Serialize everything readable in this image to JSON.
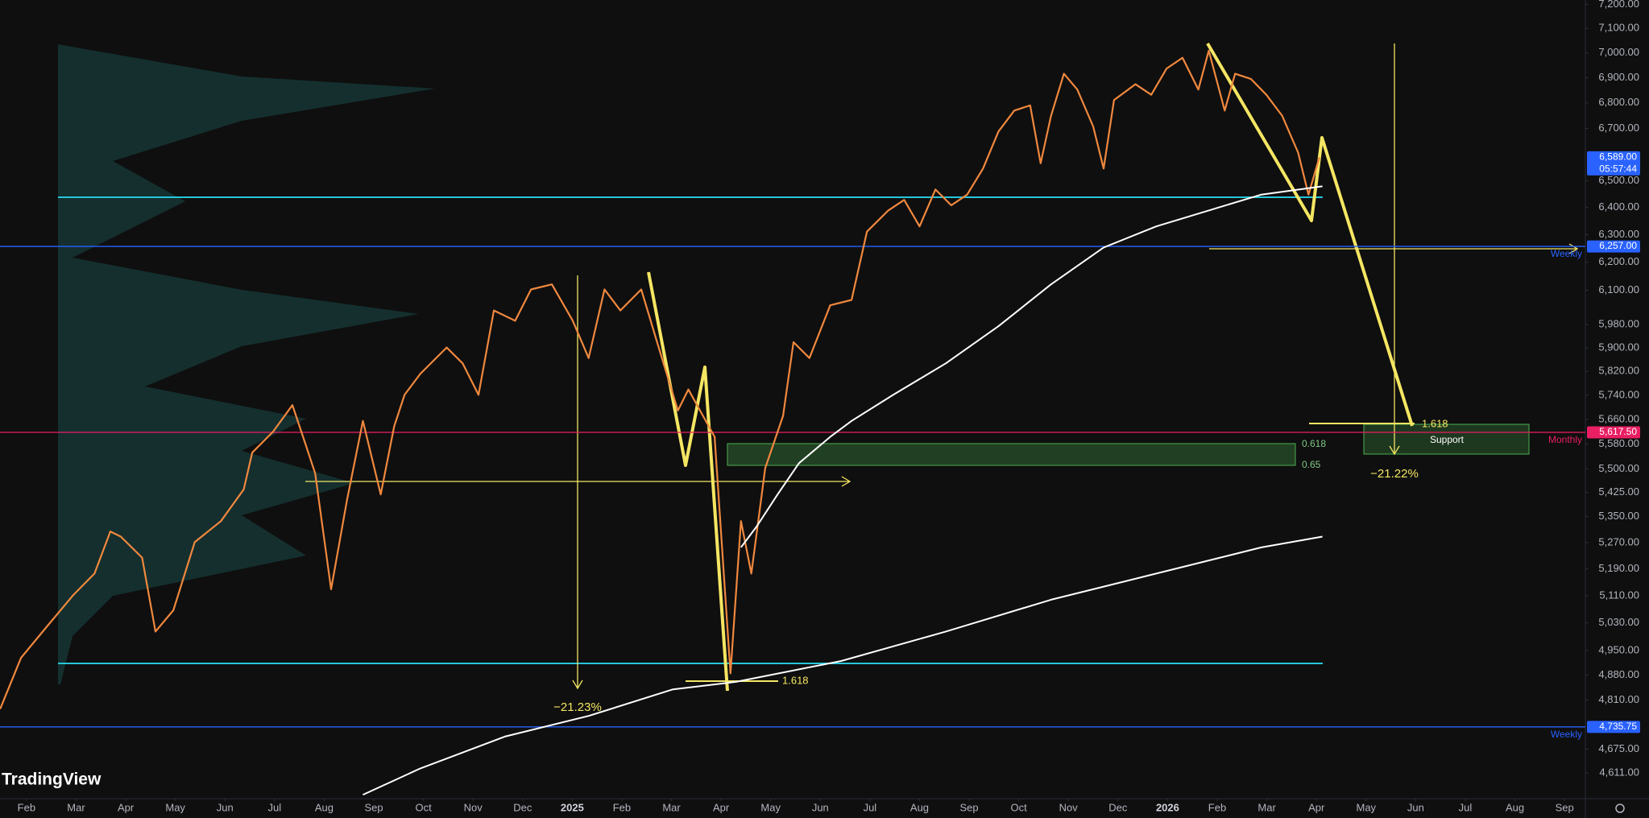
{
  "chart_data": {
    "type": "line",
    "watermark": "TradingView",
    "log_scale": true,
    "grid": false,
    "xlim": [
      0.466,
      32.42
    ],
    "ylim": [
      4549,
      7218
    ],
    "xticks": [
      {
        "value": 1,
        "label": "Feb"
      },
      {
        "value": 2,
        "label": "Mar"
      },
      {
        "value": 3,
        "label": "Apr"
      },
      {
        "value": 4,
        "label": "May"
      },
      {
        "value": 5,
        "label": "Jun"
      },
      {
        "value": 6,
        "label": "Jul"
      },
      {
        "value": 7,
        "label": "Aug"
      },
      {
        "value": 8,
        "label": "Sep"
      },
      {
        "value": 9,
        "label": "Oct"
      },
      {
        "value": 10,
        "label": "Nov"
      },
      {
        "value": 11,
        "label": "Dec"
      },
      {
        "value": 12,
        "label": "2025"
      },
      {
        "value": 13,
        "label": "Feb"
      },
      {
        "value": 14,
        "label": "Mar"
      },
      {
        "value": 15,
        "label": "Apr"
      },
      {
        "value": 16,
        "label": "May"
      },
      {
        "value": 17,
        "label": "Jun"
      },
      {
        "value": 18,
        "label": "Jul"
      },
      {
        "value": 19,
        "label": "Aug"
      },
      {
        "value": 20,
        "label": "Sep"
      },
      {
        "value": 21,
        "label": "Oct"
      },
      {
        "value": 22,
        "label": "Nov"
      },
      {
        "value": 23,
        "label": "Dec"
      },
      {
        "value": 24,
        "label": "2026"
      },
      {
        "value": 25,
        "label": "Feb"
      },
      {
        "value": 26,
        "label": "Mar"
      },
      {
        "value": 27,
        "label": "Apr"
      },
      {
        "value": 28,
        "label": "May"
      },
      {
        "value": 29,
        "label": "Jun"
      },
      {
        "value": 30,
        "label": "Jul"
      },
      {
        "value": 31,
        "label": "Aug"
      },
      {
        "value": 32,
        "label": "Sep"
      }
    ],
    "yticks": [
      {
        "value": 7200,
        "label": "7,200.00"
      },
      {
        "value": 7100,
        "label": "7,100.00"
      },
      {
        "value": 7000,
        "label": "7,000.00"
      },
      {
        "value": 6900,
        "label": "6,900.00"
      },
      {
        "value": 6800,
        "label": "6,800.00"
      },
      {
        "value": 6700,
        "label": "6,700.00"
      },
      {
        "value": 6500,
        "label": "6,500.00"
      },
      {
        "value": 6400,
        "label": "6,400.00"
      },
      {
        "value": 6300,
        "label": "6,300.00"
      },
      {
        "value": 6200,
        "label": "6,200.00"
      },
      {
        "value": 6100,
        "label": "6,100.00"
      },
      {
        "value": 5980,
        "label": "5,980.00"
      },
      {
        "value": 5900,
        "label": "5,900.00"
      },
      {
        "value": 5820,
        "label": "5,820.00"
      },
      {
        "value": 5740,
        "label": "5,740.00"
      },
      {
        "value": 5660,
        "label": "5,660.00"
      },
      {
        "value": 5580,
        "label": "5,580.00"
      },
      {
        "value": 5500,
        "label": "5,500.00"
      },
      {
        "value": 5425,
        "label": "5,425.00"
      },
      {
        "value": 5350,
        "label": "5,350.00"
      },
      {
        "value": 5270,
        "label": "5,270.00"
      },
      {
        "value": 5190,
        "label": "5,190.00"
      },
      {
        "value": 5110,
        "label": "5,110.00"
      },
      {
        "value": 5030,
        "label": "5,030.00"
      },
      {
        "value": 4950,
        "label": "4,950.00"
      },
      {
        "value": 4880,
        "label": "4,880.00"
      },
      {
        "value": 4810,
        "label": "4,810.00"
      },
      {
        "value": 4675,
        "label": "4,675.00"
      },
      {
        "value": 4611,
        "label": "4,611.00"
      }
    ],
    "series": [
      {
        "color": "#f0883e",
        "x": [
          0.47,
          0.89,
          1.42,
          1.95,
          2.37,
          2.69,
          2.9,
          3.33,
          3.6,
          3.96,
          4.39,
          4.92,
          5.38,
          5.55,
          5.97,
          6.36,
          6.61,
          6.82,
          7.14,
          7.46,
          7.78,
          8.14,
          8.41,
          8.62,
          8.94,
          9.47,
          9.79,
          10.11,
          10.42,
          10.85,
          11.17,
          11.59,
          12.01,
          12.33,
          12.65,
          12.97,
          13.39,
          13.71,
          14.13,
          14.34,
          14.87,
          15.19,
          15.4,
          15.61,
          15.89,
          16.25,
          16.46,
          16.78,
          17.2,
          17.63,
          17.94,
          18.37,
          18.69,
          19.0,
          19.32,
          19.64,
          19.96,
          20.28,
          20.59,
          20.91,
          21.23,
          21.44,
          21.65,
          21.91,
          22.18,
          22.5,
          22.71,
          22.92,
          23.35,
          23.67,
          23.98,
          24.3,
          24.62,
          24.83,
          25.15,
          25.36,
          25.68,
          25.99,
          26.31,
          26.63,
          26.84,
          27.06
        ],
        "values": [
          4785,
          4929,
          5021,
          5113,
          5176,
          5304,
          5288,
          5224,
          5005,
          5067,
          5271,
          5336,
          5435,
          5552,
          5620,
          5707,
          5586,
          5485,
          5129,
          5402,
          5655,
          5419,
          5637,
          5741,
          5812,
          5901,
          5847,
          5741,
          6029,
          5993,
          6103,
          6121,
          5993,
          5865,
          6103,
          6029,
          6103,
          5919,
          5689,
          5759,
          5603,
          4885,
          5336,
          5176,
          5502,
          5672,
          5919,
          5865,
          6047,
          6066,
          6311,
          6389,
          6428,
          6330,
          6467,
          6408,
          6448,
          6546,
          6688,
          6770,
          6790,
          6566,
          6749,
          6916,
          6853,
          6708,
          6546,
          6811,
          6874,
          6832,
          6937,
          6980,
          6853,
          7009,
          6770,
          6916,
          6895,
          6832,
          6749,
          6607,
          6448,
          6589
        ]
      },
      {
        "color": "#ffffff",
        "x": [
          15.4,
          15.72,
          16.14,
          16.57,
          17.2,
          17.63,
          18.47,
          19.53,
          20.59,
          21.65,
          22.71,
          23.77,
          24.83,
          25.89,
          27.12
        ],
        "values": [
          5255,
          5320,
          5419,
          5518,
          5603,
          5655,
          5741,
          5847,
          5974,
          6121,
          6253,
          6330,
          6389,
          6448,
          6479
        ]
      },
      {
        "color": "#ffffff",
        "x": [
          7.78,
          8.94,
          10.64,
          12.33,
          14.03,
          15.3,
          17.42,
          19.53,
          21.65,
          23.77,
          25.89,
          27.12
        ],
        "values": [
          4553,
          4623,
          4709,
          4766,
          4840,
          4861,
          4920,
          5005,
          5098,
          5176,
          5255,
          5288
        ]
      }
    ],
    "last_price": {
      "value": 6589,
      "label": "6,589.00",
      "countdown": "05:57:44",
      "color": "#2962ff"
    },
    "levels": [
      {
        "value": 6257,
        "label": "6,257.00",
        "tag": "Weekly",
        "color": "#2962ff"
      },
      {
        "value": 5617.5,
        "label": "5,617.50",
        "tag": "Monthly",
        "color": "#e91e63"
      },
      {
        "value": 4735.75,
        "label": "4,735.75",
        "tag": "Weekly",
        "color": "#2962ff"
      }
    ],
    "annotations": [
      "−21.23%",
      "−21.22%",
      "1.618",
      "1.618",
      "0.618",
      "0.65",
      "Support"
    ]
  }
}
